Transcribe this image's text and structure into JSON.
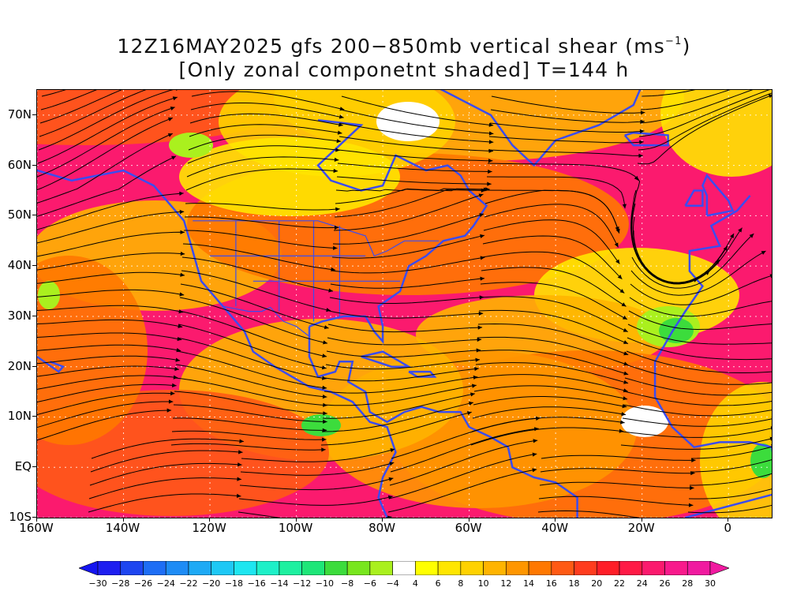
{
  "title": {
    "line1_main": "12Z16MAY2025 gfs 200−850mb vertical shear (ms",
    "line1_sup": "−1",
    "line1_end": ")",
    "line2": "[Only zonal componetnt shaded] T=144 h"
  },
  "map": {
    "lon_range": [
      -160,
      10
    ],
    "lat_range": [
      -10,
      75
    ],
    "lat_labels": [
      {
        "lat": 70,
        "text": "70N"
      },
      {
        "lat": 60,
        "text": "60N"
      },
      {
        "lat": 50,
        "text": "50N"
      },
      {
        "lat": 40,
        "text": "40N"
      },
      {
        "lat": 30,
        "text": "30N"
      },
      {
        "lat": 20,
        "text": "20N"
      },
      {
        "lat": 10,
        "text": "10N"
      },
      {
        "lat": 0,
        "text": "EQ"
      },
      {
        "lat": -10,
        "text": "10S"
      }
    ],
    "lon_labels": [
      {
        "lon": -160,
        "text": "160W"
      },
      {
        "lon": -140,
        "text": "140W"
      },
      {
        "lon": -120,
        "text": "120W"
      },
      {
        "lon": -100,
        "text": "100W"
      },
      {
        "lon": -80,
        "text": "80W"
      },
      {
        "lon": -60,
        "text": "60W"
      },
      {
        "lon": -40,
        "text": "40W"
      },
      {
        "lon": -20,
        "text": "20W"
      },
      {
        "lon": 0,
        "text": "0"
      }
    ],
    "coastline_color": "#3b4cf0",
    "streamline_color": "#000000",
    "contour_color": "#a020c0"
  },
  "colorbar": {
    "labels": [
      "−30",
      "−28",
      "−26",
      "−24",
      "−22",
      "−20",
      "−18",
      "−16",
      "−14",
      "−12",
      "−10",
      "−8",
      "−6",
      "−4",
      "4",
      "6",
      "8",
      "10",
      "12",
      "14",
      "16",
      "18",
      "20",
      "22",
      "24",
      "26",
      "28",
      "30"
    ],
    "colors": [
      "#1e1ef0",
      "#1e46f0",
      "#1e6ef5",
      "#1e8cf5",
      "#1eaaf5",
      "#1ec8f5",
      "#1ee6f0",
      "#1ef0c8",
      "#1ef0a0",
      "#1ee678",
      "#3cdc3c",
      "#78e61e",
      "#aaf01e",
      "#ffffff",
      "#ffff00",
      "#ffe600",
      "#ffd200",
      "#ffb400",
      "#ff9600",
      "#ff7800",
      "#ff5a14",
      "#ff3c1e",
      "#ff1e28",
      "#ff1a46",
      "#fb1a6e",
      "#f81a8c",
      "#f01aa0"
    ],
    "left_arrow_color": "#1414f0",
    "right_arrow_color": "#f01aa0"
  }
}
